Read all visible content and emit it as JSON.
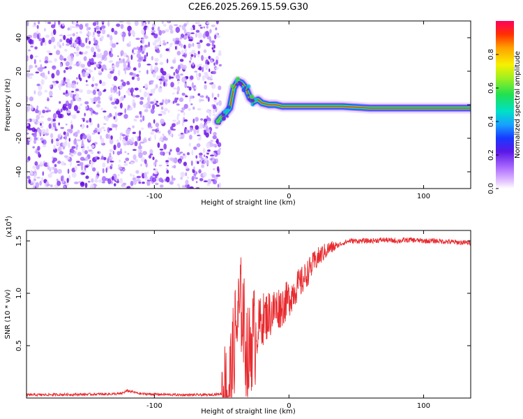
{
  "title": "C2E6.2025.269.15.59.G30",
  "chart_data": [
    {
      "type": "heatmap",
      "name": "spectrogram",
      "xlabel": "Height of straight line (km)",
      "ylabel": "Frequency (Hz)",
      "xlim": [
        -195,
        135
      ],
      "ylim": [
        -50,
        50
      ],
      "xticks": [
        -100,
        0,
        100
      ],
      "xtick_labels": [
        "-100",
        "0",
        "100"
      ],
      "yticks": [
        -40,
        -20,
        0,
        20,
        40
      ],
      "ytick_labels": [
        "-40",
        "-20",
        "0",
        "20",
        "40"
      ],
      "noise_region_x": [
        -195,
        -53
      ],
      "signal_track": {
        "x": [
          -53,
          -50,
          -47,
          -44,
          -41,
          -38,
          -35,
          -32,
          -29,
          -26,
          -23,
          -20,
          -15,
          -10,
          -5,
          0,
          10,
          20,
          30,
          40,
          60,
          80,
          100,
          120,
          135
        ],
        "y": [
          -10,
          -7,
          -5,
          -2,
          10,
          14,
          13,
          10,
          4,
          2,
          3,
          1,
          0,
          0,
          -1,
          -1,
          -1,
          -1,
          -1,
          -1,
          -2,
          -2,
          -2,
          -2,
          -2
        ]
      },
      "colorbar": {
        "label": "Normalized spectral amplitude",
        "range": [
          0,
          1
        ],
        "ticks": [
          0,
          0.2,
          0.4,
          0.6,
          0.8
        ],
        "tick_labels": [
          "0.0",
          "0.2",
          "0.4",
          "0.6",
          "0.8"
        ]
      }
    },
    {
      "type": "line",
      "name": "snr",
      "xlabel": "Height of straight line (km)",
      "ylabel": "SNR (10 * v/v)",
      "y_multiplier_label": "(x10",
      "y_multiplier_exp": "4",
      "y_multiplier_close": ")",
      "xlim": [
        -195,
        135
      ],
      "ylim": [
        0,
        1.6
      ],
      "xticks": [
        -100,
        0,
        100
      ],
      "xtick_labels": [
        "-100",
        "0",
        "100"
      ],
      "yticks": [
        0.5,
        1.0,
        1.5
      ],
      "ytick_labels": [
        "0.5",
        "1.0",
        "1.5"
      ],
      "color": "#e8292d",
      "series": [
        {
          "name": "SNR",
          "x": [
            -195,
            -150,
            -125,
            -120,
            -110,
            -80,
            -60,
            -50,
            -45,
            -42,
            -40,
            -38,
            -35,
            -32,
            -30,
            -28,
            -25,
            -22,
            -20,
            -15,
            -10,
            -5,
            0,
            5,
            10,
            15,
            20,
            25,
            30,
            35,
            40,
            45,
            50,
            60,
            70,
            80,
            90,
            100,
            110,
            120,
            135
          ],
          "y": [
            0.03,
            0.035,
            0.04,
            0.07,
            0.04,
            0.03,
            0.03,
            0.04,
            0.1,
            0.3,
            0.6,
            0.75,
            0.9,
            0.5,
            0.35,
            0.55,
            0.6,
            0.7,
            0.75,
            0.8,
            0.85,
            0.88,
            0.95,
            1.05,
            1.12,
            1.22,
            1.32,
            1.38,
            1.43,
            1.45,
            1.48,
            1.5,
            1.5,
            1.5,
            1.51,
            1.5,
            1.51,
            1.5,
            1.5,
            1.49,
            1.48
          ]
        }
      ]
    }
  ]
}
